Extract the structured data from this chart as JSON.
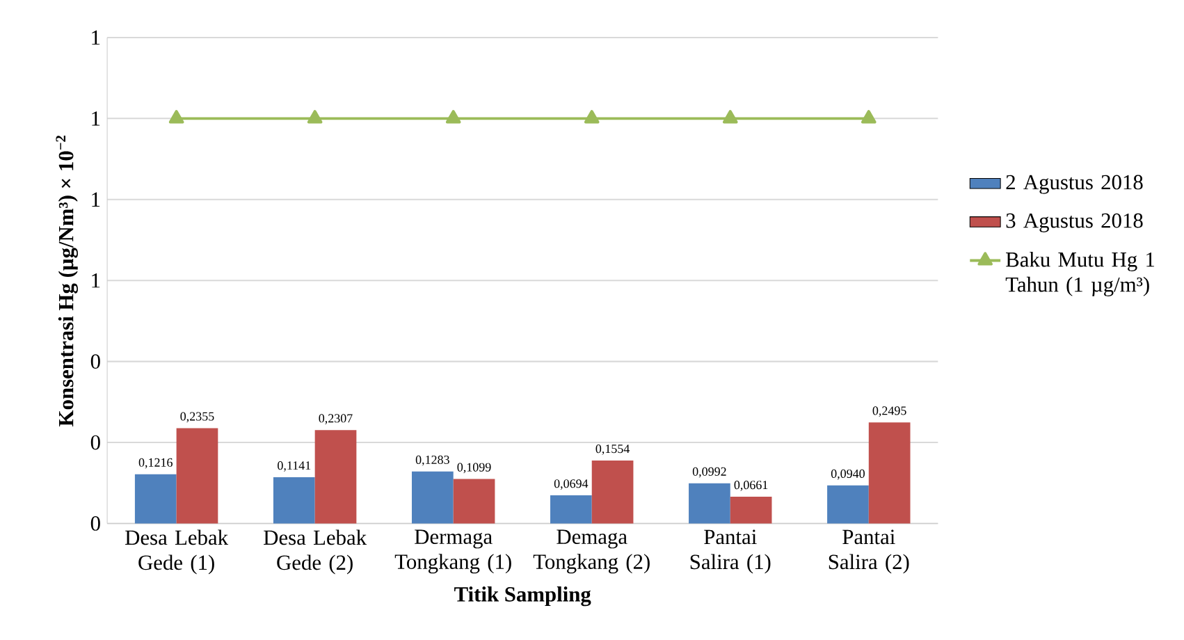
{
  "chart_data": {
    "type": "bar",
    "xlabel": "Titik Sampling",
    "ylabel": "Konsentrasi Hg (µg/Nm³) × 10$^{−2}$",
    "categories": [
      "Desa Lebak Gede (1)",
      "Desa Lebak Gede (2)",
      "Dermaga Tongkang (1)",
      "Demaga Tongkang (2)",
      "Pantai Salira (1)",
      "Pantai Salira (2)"
    ],
    "series": [
      {
        "name": "2 Agustus 2018",
        "color": "#4f81bd",
        "values": [
          0.1216,
          0.1141,
          0.1283,
          0.0694,
          0.0992,
          0.094
        ],
        "value_labels": [
          "0,1216",
          "0,1141",
          "0,1283",
          "0,0694",
          "0,0992",
          "0,0940"
        ]
      },
      {
        "name": "3 Agustus 2018",
        "color": "#c0504d",
        "values": [
          0.2355,
          0.2307,
          0.1099,
          0.1554,
          0.0661,
          0.2495
        ],
        "value_labels": [
          "0,2355",
          "0,2307",
          "0,1099",
          "0,1554",
          "0,0661",
          "0,2495"
        ]
      },
      {
        "name": "Baku Mutu Hg 1 Tahun (1 µg/m³)",
        "type": "line",
        "color": "#9bbb59",
        "marker": "triangle",
        "values": [
          1,
          1,
          1,
          1,
          1,
          1
        ]
      }
    ],
    "ylim": [
      0,
      1.2
    ],
    "yticks": [
      {
        "value": 0,
        "label": "0"
      },
      {
        "value": 0.2,
        "label": "0"
      },
      {
        "value": 0.4,
        "label": "0"
      },
      {
        "value": 0.6,
        "label": "1"
      },
      {
        "value": 0.8,
        "label": "1"
      },
      {
        "value": 1.0,
        "label": "1"
      },
      {
        "value": 1.2,
        "label": "1"
      }
    ],
    "grid": "y",
    "legend": "right"
  }
}
